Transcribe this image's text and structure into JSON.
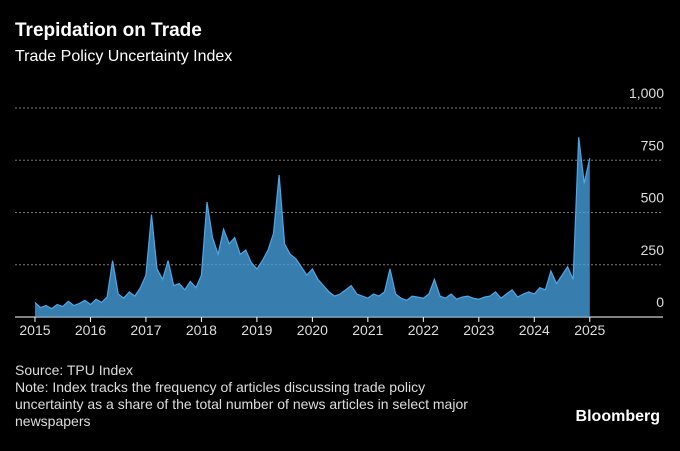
{
  "chart_data": {
    "type": "area",
    "title": "Trepidation on Trade",
    "subtitle": "Trade Policy Uncertainty Index",
    "source": "Source: TPU Index",
    "note": "Note: Index tracks the frequency of articles discussing trade policy uncertainty as a share of the total number of news articles in select major newspapers",
    "brand": "Bloomberg",
    "color": "#4aa8e8",
    "grid": true,
    "xlim": [
      2014.64,
      2026.32
    ],
    "xticks": [
      2015,
      2016,
      2017,
      2018,
      2019,
      2020,
      2021,
      2022,
      2023,
      2024,
      2025
    ],
    "ylim": [
      0,
      1000
    ],
    "yticks": [
      0,
      250,
      500,
      750,
      {
        "value": 1000,
        "label": "1,000"
      }
    ],
    "x": [
      2015.0,
      2015.1,
      2015.2,
      2015.3,
      2015.4,
      2015.5,
      2015.6,
      2015.7,
      2015.8,
      2015.9,
      2016.0,
      2016.1,
      2016.2,
      2016.3,
      2016.4,
      2016.5,
      2016.6,
      2016.7,
      2016.8,
      2016.9,
      2017.0,
      2017.1,
      2017.2,
      2017.3,
      2017.4,
      2017.5,
      2017.6,
      2017.7,
      2017.8,
      2017.9,
      2018.0,
      2018.1,
      2018.2,
      2018.3,
      2018.4,
      2018.5,
      2018.6,
      2018.7,
      2018.8,
      2018.9,
      2019.0,
      2019.1,
      2019.2,
      2019.3,
      2019.4,
      2019.5,
      2019.6,
      2019.7,
      2019.8,
      2019.9,
      2020.0,
      2020.1,
      2020.2,
      2020.3,
      2020.4,
      2020.5,
      2020.6,
      2020.7,
      2020.8,
      2020.9,
      2021.0,
      2021.1,
      2021.2,
      2021.3,
      2021.4,
      2021.5,
      2021.6,
      2021.7,
      2021.8,
      2021.9,
      2022.0,
      2022.1,
      2022.2,
      2022.3,
      2022.4,
      2022.5,
      2022.6,
      2022.7,
      2022.8,
      2022.9,
      2023.0,
      2023.1,
      2023.2,
      2023.3,
      2023.4,
      2023.5,
      2023.6,
      2023.7,
      2023.8,
      2023.9,
      2024.0,
      2024.1,
      2024.2,
      2024.3,
      2024.4,
      2024.5,
      2024.6,
      2024.7,
      2024.8,
      2024.9,
      2025.0
    ],
    "values": [
      70,
      45,
      55,
      40,
      60,
      50,
      75,
      55,
      65,
      80,
      60,
      85,
      70,
      95,
      270,
      110,
      90,
      120,
      100,
      140,
      200,
      490,
      230,
      180,
      270,
      150,
      160,
      130,
      170,
      140,
      200,
      550,
      380,
      300,
      420,
      350,
      380,
      300,
      320,
      260,
      230,
      270,
      320,
      400,
      680,
      350,
      300,
      280,
      240,
      200,
      230,
      180,
      150,
      120,
      100,
      110,
      130,
      150,
      110,
      100,
      90,
      110,
      100,
      120,
      230,
      110,
      90,
      80,
      100,
      95,
      90,
      110,
      180,
      100,
      90,
      110,
      85,
      95,
      100,
      90,
      85,
      95,
      100,
      120,
      90,
      110,
      130,
      95,
      110,
      120,
      110,
      140,
      130,
      220,
      160,
      200,
      240,
      180,
      860,
      640,
      760
    ]
  }
}
